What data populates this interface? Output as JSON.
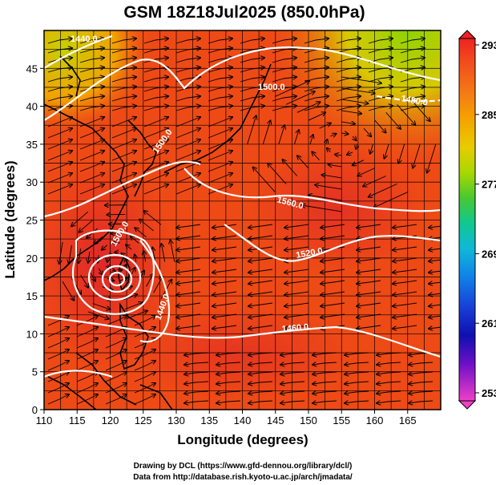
{
  "title": "GSM 18Z18Jul2025 (850.0hPa)",
  "xlabel": "Longitude (degrees)",
  "ylabel": "Latitude  (degrees)",
  "x_ticks": [
    "110",
    "115",
    "120",
    "125",
    "130",
    "135",
    "140",
    "145",
    "150",
    "155",
    "160",
    "165"
  ],
  "y_ticks": [
    "0",
    "5",
    "10",
    "15",
    "20",
    "25",
    "30",
    "35",
    "40",
    "45"
  ],
  "colorbar": {
    "labels": [
      "293",
      "285",
      "277",
      "269",
      "261",
      "253"
    ],
    "colors": [
      "#ee2222",
      "#f56a18",
      "#f5a000",
      "#e8d000",
      "#a8d800",
      "#55c800",
      "#10c860",
      "#10c8c0",
      "#1090e8",
      "#1848e0",
      "#0e10b8",
      "#6010c8",
      "#c020d0",
      "#f040c8"
    ]
  },
  "contour_labels": [
    "1440.0",
    "1500.0",
    "1480.0",
    "1500.0",
    "1560.0",
    "1520.0",
    "1440.0",
    "1500.0",
    "1460.0"
  ],
  "credits": [
    "Drawing by DCL (https://www.gfd-dennou.org/library/dcl/)",
    "Data from http://database.rish.kyoto-u.ac.jp/arch/jmadata/"
  ],
  "colors": {
    "warm_field": "#ee4418",
    "hot_core": "#e83a20",
    "cool_north": "#9ad400"
  }
}
